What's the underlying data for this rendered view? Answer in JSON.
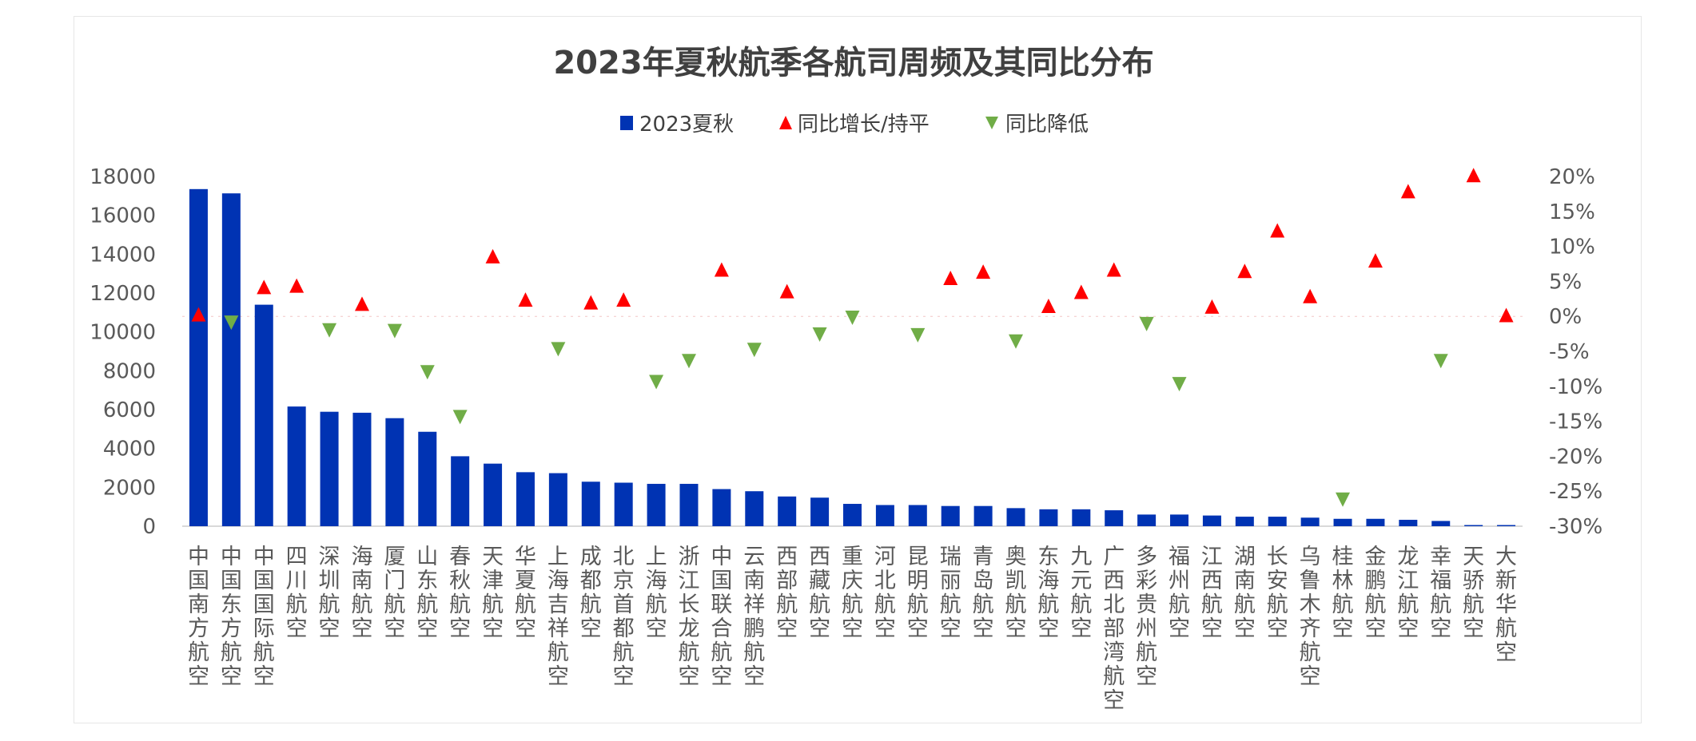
{
  "chart_data": {
    "type": "bar",
    "title": "2023年夏秋航季各航司周频及其同比分布",
    "legend_position": "top",
    "categories": [
      "中国南方航空",
      "中国东方航空",
      "中国国际航空",
      "四川航空",
      "深圳航空",
      "海南航空",
      "厦门航空",
      "山东航空",
      "春秋航空",
      "天津航空",
      "华夏航空",
      "上海吉祥航空",
      "成都航空",
      "北京首都航空",
      "上海航空",
      "浙江长龙航空",
      "中国联合航空",
      "云南祥鹏航空",
      "西部航空",
      "西藏航空",
      "重庆航空",
      "河北航空",
      "昆明航空",
      "瑞丽航空",
      "青岛航空",
      "奥凯航空",
      "东海航空",
      "九元航空",
      "广西北部湾航空",
      "多彩贵州航空",
      "福州航空",
      "江西航空",
      "湖南航空",
      "长安航空",
      "乌鲁木齐航空",
      "桂林航空",
      "金鹏航空",
      "龙江航空",
      "幸福航空",
      "天骄航空",
      "大新华航空"
    ],
    "series": [
      {
        "name": "2023夏秋",
        "type": "bar",
        "axis": "left",
        "color": "#0033B3",
        "values": [
          17350,
          17130,
          11400,
          6160,
          5890,
          5840,
          5560,
          4860,
          3600,
          3220,
          2780,
          2730,
          2290,
          2240,
          2180,
          2180,
          1910,
          1800,
          1530,
          1470,
          1150,
          1090,
          1090,
          1040,
          1040,
          930,
          870,
          870,
          820,
          600,
          600,
          550,
          490,
          490,
          440,
          380,
          380,
          330,
          270,
          60,
          60
        ]
      },
      {
        "name": "同比增长/持平",
        "type": "scatter",
        "marker": "triangle-up",
        "axis": "right",
        "color": "#FF0000"
      },
      {
        "name": "同比降低",
        "type": "scatter",
        "marker": "triangle-down",
        "axis": "right",
        "color": "#70AD47"
      }
    ],
    "yoy_percent": [
      0.3,
      -0.9,
      4.2,
      4.4,
      -2.0,
      1.8,
      -2.1,
      -8.0,
      -14.4,
      8.6,
      2.4,
      -4.7,
      2.0,
      2.4,
      -9.4,
      -6.4,
      6.7,
      -4.8,
      3.6,
      -2.6,
      -0.2,
      null,
      -2.7,
      5.5,
      6.4,
      -3.6,
      1.5,
      3.5,
      6.7,
      -1.1,
      -9.7,
      1.4,
      6.5,
      12.3,
      2.9,
      -26.2,
      8.0,
      17.9,
      -6.4,
      20.2,
      0.2
    ],
    "ylim_left": [
      0,
      18000
    ],
    "yticks_left": [
      "0",
      "2000",
      "4000",
      "6000",
      "8000",
      "10000",
      "12000",
      "14000",
      "16000",
      "18000"
    ],
    "ylim_right": [
      -30,
      20
    ],
    "yticks_right": [
      "-30%",
      "-25%",
      "-20%",
      "-15%",
      "-10%",
      "-5%",
      "0%",
      "5%",
      "10%",
      "15%",
      "20%"
    ],
    "grid": false
  }
}
